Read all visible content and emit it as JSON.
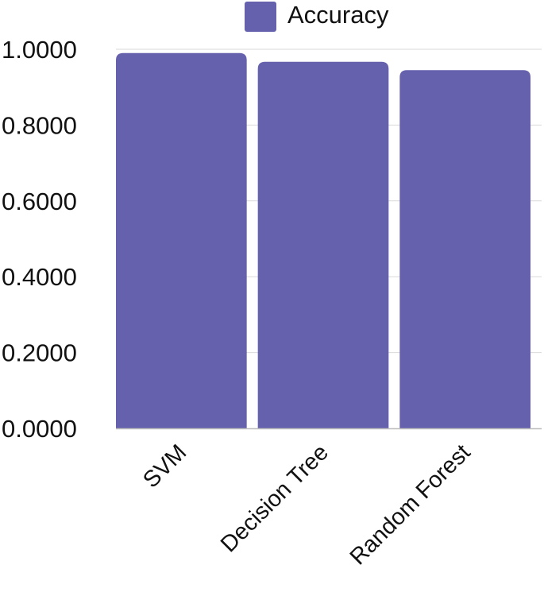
{
  "chart_data": {
    "type": "bar",
    "categories": [
      "SVM",
      "Decision Tree",
      "Random Forest"
    ],
    "series": [
      {
        "name": "Accuracy",
        "values": [
          0.99,
          0.967,
          0.945
        ],
        "color": "#6661ad"
      }
    ],
    "y_ticks": [
      "0.0000",
      "0.2000",
      "0.4000",
      "0.6000",
      "0.8000",
      "1.0000"
    ],
    "ylim": [
      0,
      1
    ],
    "grid": true,
    "legend_position": "top-center",
    "title": "",
    "xlabel": "",
    "ylabel": ""
  }
}
